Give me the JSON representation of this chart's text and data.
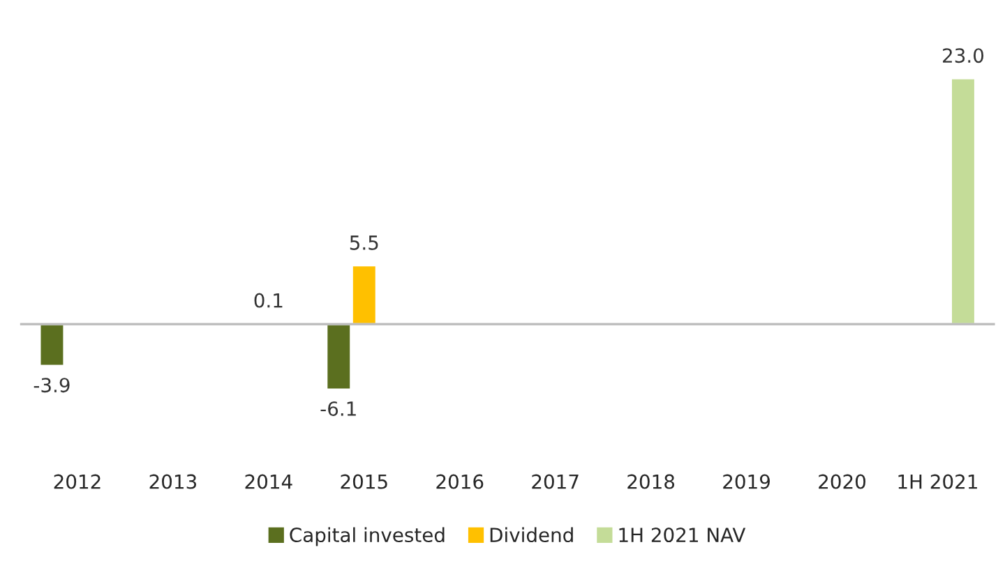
{
  "chart_data": {
    "type": "bar",
    "categories": [
      "2012",
      "2013",
      "2014",
      "2015",
      "2016",
      "2017",
      "2018",
      "2019",
      "2020",
      "1H 2021"
    ],
    "series": [
      {
        "name": "Capital invested",
        "color": "#5b6f1f",
        "values": [
          -3.9,
          null,
          null,
          -6.1,
          null,
          null,
          null,
          null,
          null,
          null
        ],
        "value_labels": [
          "-3.9",
          null,
          null,
          "-6.1",
          null,
          null,
          null,
          null,
          null,
          null
        ]
      },
      {
        "name": "Dividend",
        "color": "#ffc000",
        "values": [
          null,
          null,
          0.1,
          5.5,
          null,
          null,
          null,
          null,
          null,
          null
        ],
        "value_labels": [
          null,
          null,
          "0.1",
          "5.5",
          null,
          null,
          null,
          null,
          null,
          null
        ]
      },
      {
        "name": "1H 2021 NAV",
        "color": "#c4dc98",
        "values": [
          null,
          null,
          null,
          null,
          null,
          null,
          null,
          null,
          null,
          23.0
        ],
        "value_labels": [
          null,
          null,
          null,
          null,
          null,
          null,
          null,
          null,
          null,
          "23.0"
        ]
      }
    ],
    "tick_labels": "x",
    "grid": false,
    "legend": "bottom"
  }
}
